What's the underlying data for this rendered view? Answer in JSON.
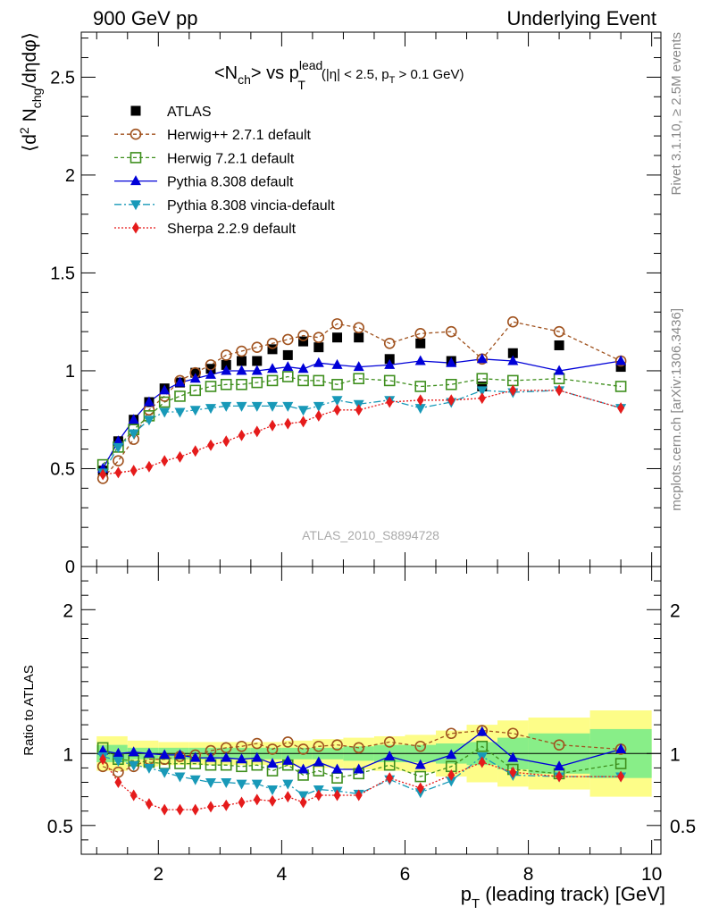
{
  "header": {
    "left": "900 GeV pp",
    "right": "Underlying Event"
  },
  "side_labels": {
    "rivet": "Rivet 3.1.10, ≥ 2.5M events",
    "mcplots": "mcplots.cern.ch [arXiv:1306.3436]"
  },
  "watermark": "ATLAS_2010_S8894728",
  "title": {
    "main": "<N",
    "sub_ch": "ch",
    "vs": "> vs p",
    "sup_lead": "lead",
    "sub_T": "T",
    "cuts": "(|η| < 2.5, p",
    "cuts_T": "T",
    "cuts_end": " > 0.1 GeV)"
  },
  "axes": {
    "ylabel_top": "⟨d² N_chg/dηdφ⟩",
    "ylabel_bottom": "Ratio to ATLAS",
    "xlabel": "p_T (leading track) [GeV]"
  },
  "chart_data": [
    {
      "type": "scatter",
      "panel": "main",
      "xlim": [
        0.75,
        10.15
      ],
      "ylim": [
        0,
        2.73
      ],
      "xticks": [
        2,
        4,
        6,
        8,
        10
      ],
      "yticks": [
        0,
        0.5,
        1,
        1.5,
        2,
        2.5
      ],
      "legend_position": "top-left",
      "x": [
        1.1,
        1.35,
        1.6,
        1.85,
        2.1,
        2.35,
        2.6,
        2.85,
        3.1,
        3.35,
        3.6,
        3.85,
        4.1,
        4.35,
        4.6,
        4.9,
        5.25,
        5.75,
        6.25,
        6.75,
        7.25,
        7.75,
        8.5,
        9.5
      ],
      "series": [
        {
          "name": "ATLAS",
          "color": "#000000",
          "marker": "square",
          "values": [
            0.49,
            0.64,
            0.75,
            0.84,
            0.91,
            0.94,
            0.99,
            1.01,
            1.03,
            1.05,
            1.05,
            1.11,
            1.08,
            1.15,
            1.12,
            1.17,
            1.17,
            1.06,
            1.14,
            1.05,
            0.92,
            1.09,
            1.13,
            1.02
          ]
        },
        {
          "name": "Herwig++ 2.7.1 default",
          "color": "#a0521e",
          "marker": "open-circle",
          "dash": "4,3",
          "values": [
            0.45,
            0.54,
            0.65,
            0.8,
            0.87,
            0.95,
            0.99,
            1.03,
            1.08,
            1.1,
            1.12,
            1.14,
            1.16,
            1.18,
            1.17,
            1.24,
            1.22,
            1.14,
            1.19,
            1.2,
            1.06,
            1.25,
            1.2,
            1.05
          ]
        },
        {
          "name": "Herwig 7.2.1 default",
          "color": "#3f8f1e",
          "marker": "open-square",
          "dash": "4,3",
          "values": [
            0.52,
            0.61,
            0.7,
            0.77,
            0.84,
            0.87,
            0.9,
            0.92,
            0.93,
            0.93,
            0.94,
            0.95,
            0.97,
            0.95,
            0.95,
            0.93,
            0.96,
            0.95,
            0.92,
            0.93,
            0.96,
            0.95,
            0.96,
            0.92
          ]
        },
        {
          "name": "Pythia 8.308 default",
          "color": "#0000d8",
          "marker": "triangle-up",
          "dash": "",
          "values": [
            0.5,
            0.64,
            0.75,
            0.84,
            0.9,
            0.94,
            0.96,
            0.98,
            1.0,
            1.0,
            1.0,
            1.01,
            1.02,
            1.01,
            1.04,
            1.03,
            1.02,
            1.03,
            1.05,
            1.04,
            1.06,
            1.05,
            1.0,
            1.05
          ]
        },
        {
          "name": "Pythia 8.308 vincia-default",
          "color": "#1899b8",
          "marker": "triangle-down",
          "dash": "8,3,2,3",
          "values": [
            0.48,
            0.61,
            0.68,
            0.75,
            0.79,
            0.79,
            0.8,
            0.81,
            0.82,
            0.82,
            0.82,
            0.82,
            0.82,
            0.8,
            0.82,
            0.85,
            0.83,
            0.85,
            0.81,
            0.84,
            0.9,
            0.89,
            0.9,
            0.81
          ]
        },
        {
          "name": "Sherpa 2.2.9 default",
          "color": "#e51b1b",
          "marker": "diamond",
          "dash": "2,2",
          "values": [
            0.47,
            0.48,
            0.49,
            0.51,
            0.54,
            0.56,
            0.59,
            0.62,
            0.64,
            0.67,
            0.69,
            0.72,
            0.73,
            0.74,
            0.77,
            0.8,
            0.8,
            0.84,
            0.85,
            0.85,
            0.86,
            0.9,
            0.9,
            0.81
          ]
        }
      ]
    },
    {
      "type": "scatter",
      "panel": "ratio",
      "xlim": [
        0.75,
        10.15
      ],
      "ylim": [
        0.3,
        2.3
      ],
      "xticks": [
        2,
        4,
        6,
        8,
        10
      ],
      "yticks": [
        0.5,
        1,
        2
      ],
      "bands": {
        "x_edges": [
          1,
          1.5,
          2,
          2.5,
          3,
          3.5,
          4,
          4.5,
          5,
          5.5,
          6,
          6.5,
          7,
          7.5,
          8,
          9,
          10
        ],
        "inner": [
          0.06,
          0.04,
          0.04,
          0.04,
          0.04,
          0.04,
          0.04,
          0.04,
          0.05,
          0.06,
          0.06,
          0.07,
          0.08,
          0.11,
          0.14,
          0.17
        ],
        "outer": [
          0.12,
          0.09,
          0.08,
          0.08,
          0.08,
          0.08,
          0.09,
          0.1,
          0.11,
          0.12,
          0.13,
          0.16,
          0.2,
          0.23,
          0.25,
          0.3
        ],
        "inner_color": "#88ee88",
        "outer_color": "#fdfd88"
      },
      "x": [
        1.1,
        1.35,
        1.6,
        1.85,
        2.1,
        2.35,
        2.6,
        2.85,
        3.1,
        3.35,
        3.6,
        3.85,
        4.1,
        4.35,
        4.6,
        4.9,
        5.25,
        5.75,
        6.25,
        6.75,
        7.25,
        7.75,
        8.5,
        9.5
      ],
      "series": [
        {
          "name": "Herwig++ 2.7.1 default",
          "values": [
            0.91,
            0.87,
            0.91,
            0.96,
            0.96,
            0.98,
            0.99,
            1.02,
            1.04,
            1.05,
            1.07,
            1.03,
            1.08,
            1.03,
            1.05,
            1.06,
            1.04,
            1.08,
            1.05,
            1.14,
            1.16,
            1.14,
            1.06,
            1.03
          ]
        },
        {
          "name": "Herwig 7.2.1 default",
          "values": [
            1.04,
            0.96,
            0.95,
            0.94,
            0.93,
            0.93,
            0.93,
            0.92,
            0.92,
            0.91,
            0.92,
            0.88,
            0.92,
            0.85,
            0.88,
            0.83,
            0.86,
            0.92,
            0.84,
            0.91,
            1.05,
            0.89,
            0.86,
            0.93
          ]
        },
        {
          "name": "Pythia 8.308 default",
          "values": [
            1.02,
            1.0,
            1.01,
            1.0,
            0.99,
            0.99,
            0.97,
            0.97,
            0.97,
            0.96,
            0.97,
            0.93,
            0.95,
            0.89,
            0.94,
            0.89,
            0.89,
            0.98,
            0.92,
            0.99,
            1.15,
            0.97,
            0.91,
            1.03
          ]
        },
        {
          "name": "Pythia 8.308 vincia-default",
          "values": [
            0.98,
            0.95,
            0.92,
            0.9,
            0.87,
            0.84,
            0.82,
            0.8,
            0.8,
            0.79,
            0.79,
            0.75,
            0.79,
            0.71,
            0.75,
            0.74,
            0.72,
            0.82,
            0.73,
            0.81,
            0.98,
            0.85,
            0.84,
            0.84
          ]
        },
        {
          "name": "Sherpa 2.2.9 default",
          "values": [
            0.96,
            0.8,
            0.71,
            0.65,
            0.61,
            0.61,
            0.61,
            0.63,
            0.64,
            0.66,
            0.68,
            0.67,
            0.7,
            0.66,
            0.71,
            0.71,
            0.71,
            0.83,
            0.76,
            0.85,
            0.94,
            0.87,
            0.84,
            0.84
          ]
        }
      ]
    }
  ]
}
